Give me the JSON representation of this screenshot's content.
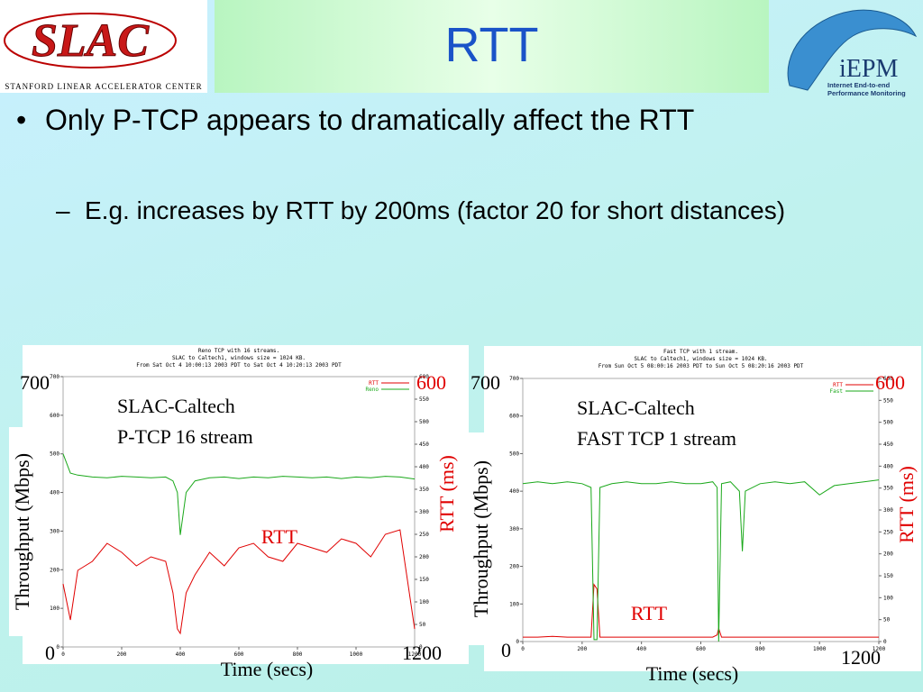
{
  "slide": {
    "title": "RTT",
    "logo_left": "SLAC",
    "logo_left_sub": "Stanford Linear Accelerator Center",
    "logo_right": "iEPM",
    "logo_right_sub": [
      "Internet End-to-end",
      "Performance Monitoring"
    ],
    "bullets": [
      {
        "text": "Only P-TCP appears to dramatically affect the RTT",
        "sub": [
          "E.g. increases by RTT by 200ms (factor 20 for short distances)"
        ]
      }
    ]
  },
  "chart_data": [
    {
      "type": "line",
      "title": "Reno TCP with 16 streams.",
      "subtitle": [
        "SLAC to Caltech1, windows size = 1024 KB.",
        "From Sat Oct  4 10:00:13 2003 PDT to Sat Oct  4 10:20:13 2003 PDT"
      ],
      "annotation": [
        "SLAC-Caltech",
        "P-TCP 16 stream"
      ],
      "rtt_label": "RTT",
      "x_label": "Time (secs)",
      "y_label": "Throughput (Mbps)",
      "y2_label": "RTT (ms)",
      "xlim": [
        0,
        1200
      ],
      "xticks": [
        0,
        200,
        400,
        600,
        800,
        1000,
        1200
      ],
      "ylim": [
        0,
        700
      ],
      "yticks": [
        0,
        100,
        200,
        300,
        400,
        500,
        600,
        700
      ],
      "y2lim": [
        0,
        600
      ],
      "y2ticks": [
        0,
        50,
        100,
        150,
        200,
        250,
        300,
        350,
        400,
        450,
        500,
        550,
        600
      ],
      "grid": false,
      "legend": "top-right",
      "x": [
        0,
        25,
        50,
        100,
        150,
        200,
        250,
        300,
        350,
        375,
        390,
        400,
        420,
        450,
        500,
        550,
        600,
        650,
        700,
        750,
        800,
        850,
        900,
        950,
        1000,
        1050,
        1100,
        1150,
        1200
      ],
      "series": [
        {
          "name": "RTT",
          "color": "#e00000",
          "axis": "y2",
          "values": [
            140,
            60,
            170,
            190,
            230,
            210,
            180,
            200,
            190,
            120,
            40,
            30,
            120,
            160,
            210,
            180,
            220,
            230,
            200,
            190,
            230,
            220,
            210,
            240,
            230,
            200,
            250,
            260,
            40
          ]
        },
        {
          "name": "Reno",
          "color": "#1aa81a",
          "values": [
            500,
            450,
            445,
            440,
            438,
            442,
            440,
            438,
            440,
            430,
            400,
            290,
            400,
            430,
            438,
            440,
            436,
            440,
            438,
            442,
            440,
            438,
            440,
            436,
            440,
            438,
            442,
            440,
            435
          ]
        }
      ]
    },
    {
      "type": "line",
      "title": "Fast TCP with 1 stream.",
      "subtitle": [
        "SLAC to Caltech1, windows size = 1024 KB.",
        "From Sun Oct  5 08:00:16 2003 PDT to Sun Oct  5 08:20:16 2003 PDT"
      ],
      "annotation": [
        "SLAC-Caltech",
        "FAST TCP 1 stream"
      ],
      "rtt_label": "RTT",
      "x_label": "Time (secs)",
      "y_label": "Throughput (Mbps)",
      "y2_label": "RTT (ms)",
      "xlim": [
        0,
        1200
      ],
      "xticks": [
        0,
        200,
        400,
        600,
        800,
        1000,
        1200
      ],
      "ylim": [
        0,
        700
      ],
      "yticks": [
        0,
        100,
        200,
        300,
        400,
        500,
        600,
        700
      ],
      "y2lim": [
        0,
        600
      ],
      "y2ticks": [
        0,
        50,
        100,
        150,
        200,
        250,
        300,
        350,
        400,
        450,
        500,
        550,
        600
      ],
      "grid": false,
      "legend": "top-right",
      "x": [
        0,
        50,
        100,
        150,
        200,
        230,
        240,
        250,
        260,
        300,
        350,
        400,
        450,
        500,
        550,
        600,
        640,
        655,
        660,
        670,
        700,
        730,
        740,
        750,
        800,
        850,
        900,
        950,
        1000,
        1050,
        1100,
        1150,
        1200
      ],
      "series": [
        {
          "name": "RTT",
          "color": "#e00000",
          "axis": "y2",
          "values": [
            10,
            10,
            12,
            10,
            10,
            10,
            130,
            120,
            10,
            10,
            10,
            10,
            10,
            10,
            10,
            10,
            10,
            15,
            30,
            10,
            10,
            10,
            10,
            10,
            10,
            10,
            10,
            10,
            10,
            10,
            10,
            10,
            10
          ]
        },
        {
          "name": "Fast",
          "color": "#1aa81a",
          "values": [
            420,
            425,
            420,
            425,
            420,
            410,
            5,
            5,
            410,
            420,
            425,
            420,
            420,
            425,
            420,
            420,
            425,
            410,
            0,
            420,
            425,
            400,
            240,
            400,
            420,
            425,
            420,
            425,
            390,
            415,
            420,
            425,
            430
          ]
        }
      ]
    }
  ]
}
